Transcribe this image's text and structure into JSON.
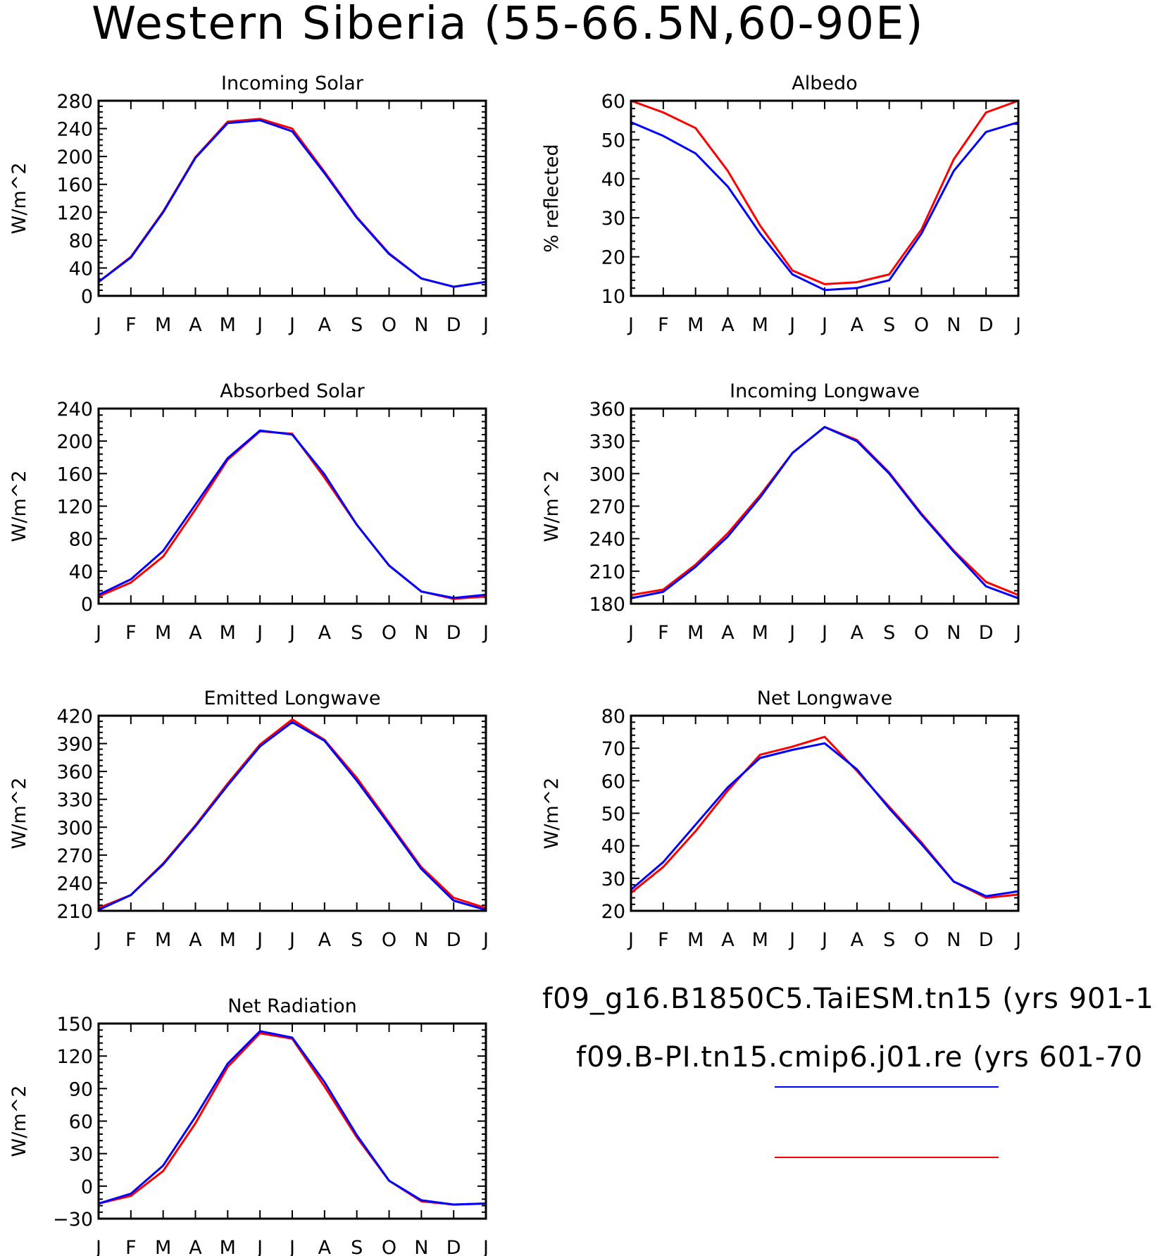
{
  "title": "Western Siberia (55-66.5N,60-90E)",
  "colors": {
    "taiesm": "#0000ff",
    "cmip6": "#ff0000",
    "axis": "#000000"
  },
  "month_labels": [
    "J",
    "F",
    "M",
    "A",
    "M",
    "J",
    "J",
    "A",
    "S",
    "O",
    "N",
    "D",
    "J"
  ],
  "legend": [
    {
      "label": "f09_g16.B1850C5.TaiESM.tn15 (yrs 901-1",
      "color": "#0000ff"
    },
    {
      "label": "f09.B-PI.tn15.cmip6.j01.re (yrs 601-70",
      "color": "#ff0000"
    }
  ],
  "chart_data": [
    {
      "type": "line",
      "title": "Incoming Solar",
      "ylabel": "W/m^2",
      "ylim": [
        0,
        280
      ],
      "yticks": [
        0,
        40,
        80,
        120,
        160,
        200,
        240,
        280
      ],
      "x": [
        "J",
        "F",
        "M",
        "A",
        "M",
        "J",
        "J",
        "A",
        "S",
        "O",
        "N",
        "D",
        "J"
      ],
      "series": [
        {
          "name": "f09.B-PI.tn15.cmip6.j01.re",
          "color": "#ff0000",
          "values": [
            20,
            56,
            121,
            199,
            250,
            254,
            240,
            178,
            113,
            61,
            25,
            13,
            20
          ]
        },
        {
          "name": "f09_g16.B1850C5.TaiESM.tn15",
          "color": "#0000ff",
          "values": [
            20,
            55,
            120,
            198,
            248,
            252,
            236,
            176,
            112,
            60,
            25,
            13,
            20
          ]
        }
      ]
    },
    {
      "type": "line",
      "title": "Albedo",
      "ylabel": "% reflected",
      "ylim": [
        10,
        60
      ],
      "yticks": [
        10,
        20,
        30,
        40,
        50,
        60
      ],
      "x": [
        "J",
        "F",
        "M",
        "A",
        "M",
        "J",
        "J",
        "A",
        "S",
        "O",
        "N",
        "D",
        "J"
      ],
      "series": [
        {
          "name": "f09.B-PI.tn15.cmip6.j01.re",
          "color": "#ff0000",
          "values": [
            60,
            57,
            53,
            42,
            28,
            16.5,
            13,
            13.5,
            15.5,
            27,
            45,
            57,
            60
          ]
        },
        {
          "name": "f09_g16.B1850C5.TaiESM.tn15",
          "color": "#0000ff",
          "values": [
            54.5,
            51,
            46.5,
            38,
            26,
            15.5,
            11.5,
            12,
            14,
            26,
            42,
            52,
            54.5
          ]
        }
      ]
    },
    {
      "type": "line",
      "title": "Absorbed Solar",
      "ylabel": "W/m^2",
      "ylim": [
        0,
        240
      ],
      "yticks": [
        0,
        40,
        80,
        120,
        160,
        200,
        240
      ],
      "x": [
        "J",
        "F",
        "M",
        "A",
        "M",
        "J",
        "J",
        "A",
        "S",
        "O",
        "N",
        "D",
        "J"
      ],
      "series": [
        {
          "name": "f09.B-PI.tn15.cmip6.j01.re",
          "color": "#ff0000",
          "values": [
            9,
            26,
            58,
            116,
            177,
            212,
            209,
            155,
            97,
            47,
            15,
            6,
            9
          ]
        },
        {
          "name": "f09_g16.B1850C5.TaiESM.tn15",
          "color": "#0000ff",
          "values": [
            11,
            30,
            65,
            122,
            179,
            213,
            208,
            159,
            97,
            47,
            15,
            7,
            11
          ]
        }
      ]
    },
    {
      "type": "line",
      "title": "Incoming Longwave",
      "ylabel": "W/m^2",
      "ylim": [
        180,
        360
      ],
      "yticks": [
        180,
        210,
        240,
        270,
        300,
        330,
        360
      ],
      "x": [
        "J",
        "F",
        "M",
        "A",
        "M",
        "J",
        "J",
        "A",
        "S",
        "O",
        "N",
        "D",
        "J"
      ],
      "series": [
        {
          "name": "f09.B-PI.tn15.cmip6.j01.re",
          "color": "#ff0000",
          "values": [
            188,
            193,
            216,
            245,
            280,
            319,
            343,
            331,
            301,
            263,
            229,
            200,
            188
          ]
        },
        {
          "name": "f09_g16.B1850C5.TaiESM.tn15",
          "color": "#0000ff",
          "values": [
            185,
            191,
            214,
            242,
            278,
            319,
            343,
            330,
            300,
            262,
            228,
            196,
            185
          ]
        }
      ]
    },
    {
      "type": "line",
      "title": "Emitted Longwave",
      "ylabel": "W/m^2",
      "ylim": [
        210,
        420
      ],
      "yticks": [
        210,
        240,
        270,
        300,
        330,
        360,
        390,
        420
      ],
      "x": [
        "J",
        "F",
        "M",
        "A",
        "M",
        "J",
        "J",
        "A",
        "S",
        "O",
        "N",
        "D",
        "J"
      ],
      "series": [
        {
          "name": "f09.B-PI.tn15.cmip6.j01.re",
          "color": "#ff0000",
          "values": [
            213,
            227,
            261,
            302,
            347,
            389,
            416,
            394,
            353,
            305,
            257,
            224,
            213
          ]
        },
        {
          "name": "f09_g16.B1850C5.TaiESM.tn15",
          "color": "#0000ff",
          "values": [
            211,
            227,
            260,
            301,
            345,
            387,
            413,
            393,
            350,
            303,
            255,
            221,
            211
          ]
        }
      ]
    },
    {
      "type": "line",
      "title": "Net Longwave",
      "ylabel": "W/m^2",
      "ylim": [
        20,
        80
      ],
      "yticks": [
        20,
        30,
        40,
        50,
        60,
        70,
        80
      ],
      "x": [
        "J",
        "F",
        "M",
        "A",
        "M",
        "J",
        "J",
        "A",
        "S",
        "O",
        "N",
        "D",
        "J"
      ],
      "series": [
        {
          "name": "f09.B-PI.tn15.cmip6.j01.re",
          "color": "#ff0000",
          "values": [
            25.5,
            33.5,
            44.5,
            57,
            68,
            70.5,
            73.5,
            63,
            52,
            41,
            29,
            24,
            25
          ]
        },
        {
          "name": "f09_g16.B1850C5.TaiESM.tn15",
          "color": "#0000ff",
          "values": [
            26.5,
            35,
            46.5,
            58,
            67,
            69.5,
            71.5,
            63.5,
            51.5,
            40.5,
            29,
            24.5,
            26
          ]
        }
      ]
    },
    {
      "type": "line",
      "title": "Net Radiation",
      "ylabel": "W/m^2",
      "ylim": [
        -30,
        150
      ],
      "yticks": [
        -30,
        0,
        30,
        60,
        90,
        120,
        150
      ],
      "x": [
        "J",
        "F",
        "M",
        "A",
        "M",
        "J",
        "J",
        "A",
        "S",
        "O",
        "N",
        "D",
        "J"
      ],
      "series": [
        {
          "name": "f09.B-PI.tn15.cmip6.j01.re",
          "color": "#ff0000",
          "values": [
            -16,
            -9,
            14,
            58,
            110,
            141,
            136,
            92,
            45,
            5,
            -14,
            -17,
            -16
          ]
        },
        {
          "name": "f09_g16.B1850C5.TaiESM.tn15",
          "color": "#0000ff",
          "values": [
            -16,
            -7,
            19,
            64,
            113,
            143,
            137,
            96,
            47,
            5,
            -13,
            -17,
            -16
          ]
        }
      ]
    }
  ]
}
